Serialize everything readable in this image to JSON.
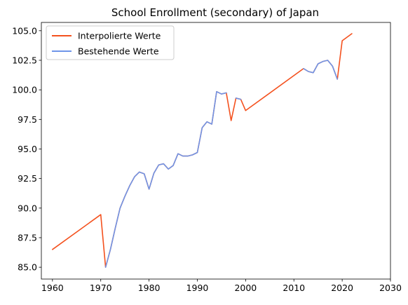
{
  "chart_data": {
    "type": "line",
    "title": "School Enrollment (secondary) of Japan",
    "xlabel": "",
    "ylabel": "",
    "xlim": [
      1957.7,
      2030
    ],
    "ylim": [
      84.0,
      105.7
    ],
    "xticks": [
      1960,
      1970,
      1980,
      1990,
      2000,
      2010,
      2020,
      2030
    ],
    "yticks": [
      85.0,
      87.5,
      90.0,
      92.5,
      95.0,
      97.5,
      100.0,
      102.5,
      105.0
    ],
    "ytick_labels": [
      "85.0",
      "87.5",
      "90.0",
      "92.5",
      "95.0",
      "97.5",
      "100.0",
      "102.5",
      "105.0"
    ],
    "grid": false,
    "legend_position": "top-left",
    "series": [
      {
        "name": "Interpolierte Werte",
        "color": "#f4511e",
        "points": [
          [
            1960,
            86.5
          ],
          [
            1970,
            89.45
          ],
          [
            1971,
            85.0
          ],
          [
            1972,
            86.5
          ],
          [
            1973,
            88.3
          ],
          [
            1974,
            90.0
          ],
          [
            1975,
            91.0
          ],
          [
            1976,
            91.9
          ],
          [
            1977,
            92.65
          ],
          [
            1978,
            93.05
          ],
          [
            1979,
            92.9
          ],
          [
            1980,
            91.6
          ],
          [
            1981,
            92.95
          ],
          [
            1982,
            93.65
          ],
          [
            1983,
            93.75
          ],
          [
            1984,
            93.3
          ],
          [
            1985,
            93.6
          ],
          [
            1986,
            94.6
          ],
          [
            1987,
            94.4
          ],
          [
            1988,
            94.4
          ],
          [
            1989,
            94.5
          ],
          [
            1990,
            94.7
          ],
          [
            1991,
            96.8
          ],
          [
            1992,
            97.3
          ],
          [
            1993,
            97.1
          ],
          [
            1994,
            99.85
          ],
          [
            1995,
            99.65
          ],
          [
            1996,
            99.75
          ],
          [
            1997,
            97.4
          ],
          [
            1998,
            99.3
          ],
          [
            1999,
            99.2
          ],
          [
            2000,
            98.25
          ],
          [
            2012,
            101.8
          ],
          [
            2013,
            101.55
          ],
          [
            2014,
            101.45
          ],
          [
            2015,
            102.2
          ],
          [
            2016,
            102.4
          ],
          [
            2017,
            102.5
          ],
          [
            2018,
            102.0
          ],
          [
            2019,
            100.9
          ],
          [
            2020,
            104.15
          ],
          [
            2022,
            104.75
          ]
        ]
      },
      {
        "name": "Bestehende Werte",
        "color": "#6f95e8",
        "segments": [
          [
            [
              1971,
              85.0
            ],
            [
              1972,
              86.5
            ],
            [
              1973,
              88.3
            ],
            [
              1974,
              90.0
            ],
            [
              1975,
              91.0
            ],
            [
              1976,
              91.9
            ],
            [
              1977,
              92.65
            ],
            [
              1978,
              93.05
            ],
            [
              1979,
              92.9
            ],
            [
              1980,
              91.6
            ],
            [
              1981,
              92.95
            ],
            [
              1982,
              93.65
            ],
            [
              1983,
              93.75
            ],
            [
              1984,
              93.3
            ],
            [
              1985,
              93.6
            ],
            [
              1986,
              94.6
            ],
            [
              1987,
              94.4
            ],
            [
              1988,
              94.4
            ],
            [
              1989,
              94.5
            ],
            [
              1990,
              94.7
            ],
            [
              1991,
              96.8
            ],
            [
              1992,
              97.3
            ],
            [
              1993,
              97.1
            ],
            [
              1994,
              99.85
            ],
            [
              1995,
              99.65
            ],
            [
              1996,
              99.75
            ]
          ],
          [
            [
              1998,
              99.3
            ],
            [
              1999,
              99.2
            ]
          ],
          [
            [
              2012,
              101.8
            ],
            [
              2013,
              101.55
            ],
            [
              2014,
              101.45
            ],
            [
              2015,
              102.2
            ],
            [
              2016,
              102.4
            ],
            [
              2017,
              102.5
            ],
            [
              2018,
              102.0
            ],
            [
              2019,
              100.9
            ]
          ]
        ]
      }
    ]
  }
}
